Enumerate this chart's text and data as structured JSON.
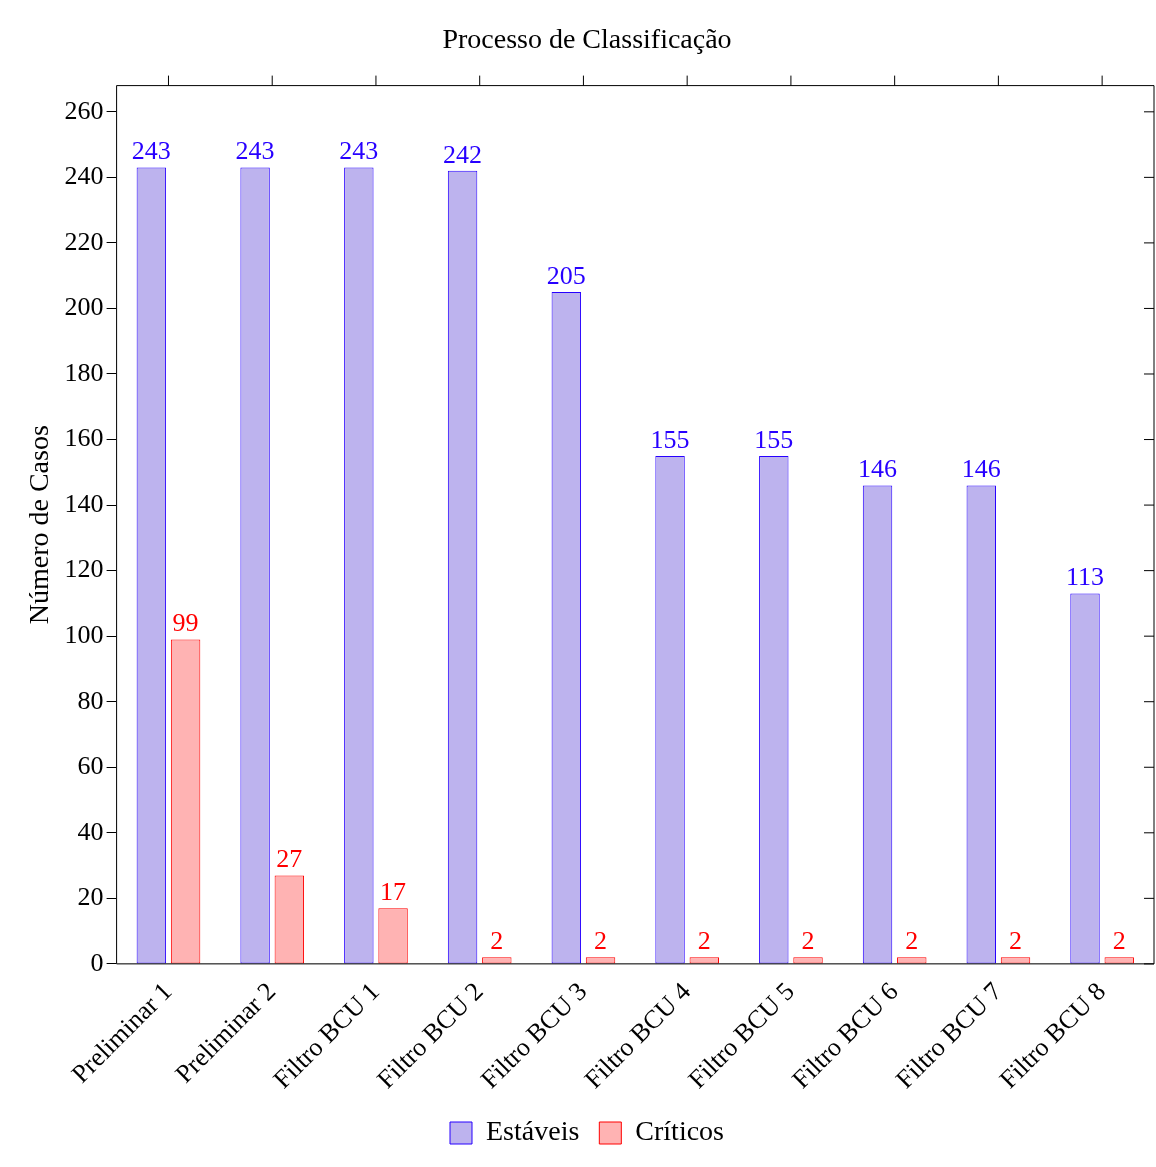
{
  "chart_data": {
    "type": "bar",
    "title": "Processo de Classificação",
    "ylabel": "Número de Casos",
    "categories": [
      "Preliminar 1",
      "Preliminar 2",
      "Filtro BCU 1",
      "Filtro BCU 2",
      "Filtro BCU 3",
      "Filtro BCU 4",
      "Filtro BCU 5",
      "Filtro BCU 6",
      "Filtro BCU 7",
      "Filtro BCU 8"
    ],
    "series": [
      {
        "name": "Estáveis",
        "color": "#bdb3ee",
        "values": [
          243,
          243,
          243,
          242,
          205,
          155,
          155,
          146,
          146,
          113
        ]
      },
      {
        "name": "Críticos",
        "color": "#ffb3b3",
        "values": [
          99,
          27,
          17,
          2,
          2,
          2,
          2,
          2,
          2,
          2
        ]
      }
    ],
    "ylim": [
      0,
      268
    ],
    "yticks": [
      0,
      20,
      40,
      60,
      80,
      100,
      120,
      140,
      160,
      180,
      200,
      220,
      240,
      260
    ],
    "data_labels": true,
    "legend": "bottom",
    "grid": false
  }
}
